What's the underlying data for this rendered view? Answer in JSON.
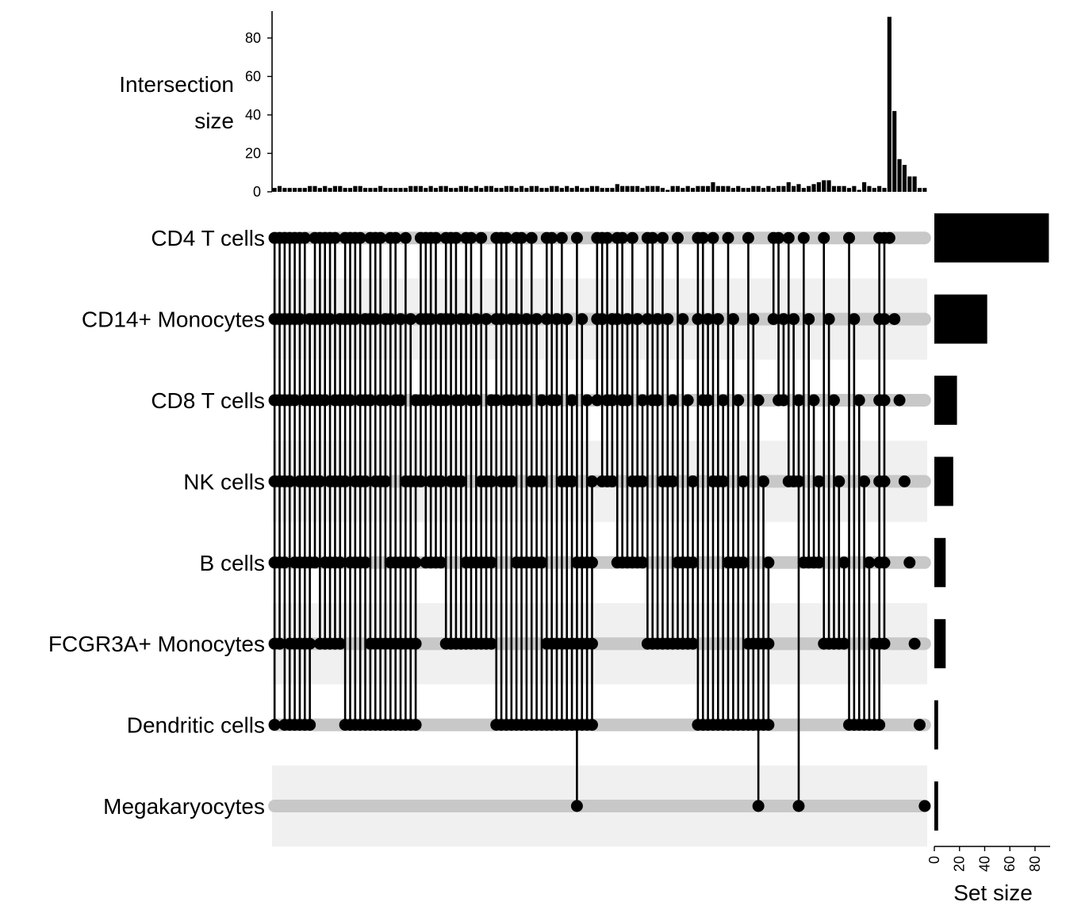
{
  "chart_data": {
    "type": "upset",
    "title": "",
    "intersection_axis": {
      "label_lines": [
        "Intersection",
        "size"
      ],
      "ticks": [
        0,
        20,
        40,
        60,
        80
      ],
      "ylim": [
        0,
        94
      ]
    },
    "set_size_axis": {
      "label": "Set size",
      "ticks": [
        0,
        20,
        40,
        60,
        80
      ],
      "xlim": [
        0,
        92
      ]
    },
    "sets": [
      "CD4 T cells",
      "CD14+ Monocytes",
      "CD8 T cells",
      "NK cells",
      "B cells",
      "FCGR3A+ Monocytes",
      "Dendritic cells",
      "Megakaryocytes"
    ],
    "set_sizes": [
      91,
      42,
      18,
      15,
      9,
      9,
      3,
      3
    ],
    "intersection_sizes": [
      2,
      3,
      2,
      2,
      2,
      2,
      2,
      3,
      3,
      2,
      3,
      2,
      3,
      3,
      2,
      2,
      3,
      3,
      2,
      2,
      2,
      3,
      2,
      2,
      2,
      2,
      2,
      3,
      3,
      3,
      2,
      3,
      2,
      3,
      3,
      2,
      2,
      3,
      3,
      2,
      3,
      2,
      3,
      3,
      2,
      2,
      3,
      3,
      2,
      3,
      2,
      3,
      3,
      2,
      2,
      3,
      3,
      2,
      3,
      2,
      3,
      2,
      2,
      3,
      3,
      2,
      2,
      2,
      4,
      3,
      3,
      3,
      3,
      2,
      3,
      3,
      3,
      2,
      1,
      3,
      3,
      2,
      3,
      2,
      3,
      3,
      3,
      5,
      3,
      3,
      3,
      2,
      3,
      2,
      2,
      3,
      3,
      2,
      3,
      2,
      3,
      3,
      5,
      3,
      4,
      2,
      3,
      4,
      5,
      6,
      6,
      3,
      3,
      3,
      2,
      3,
      1,
      5,
      3,
      2,
      3,
      2,
      91,
      42,
      17,
      14,
      8,
      8,
      2,
      2
    ],
    "grid": "alternating-row-shading",
    "colors": {
      "bar": "#000000",
      "inactive_dot": "#c8c8c8",
      "shade": "#f0f0f0"
    }
  }
}
